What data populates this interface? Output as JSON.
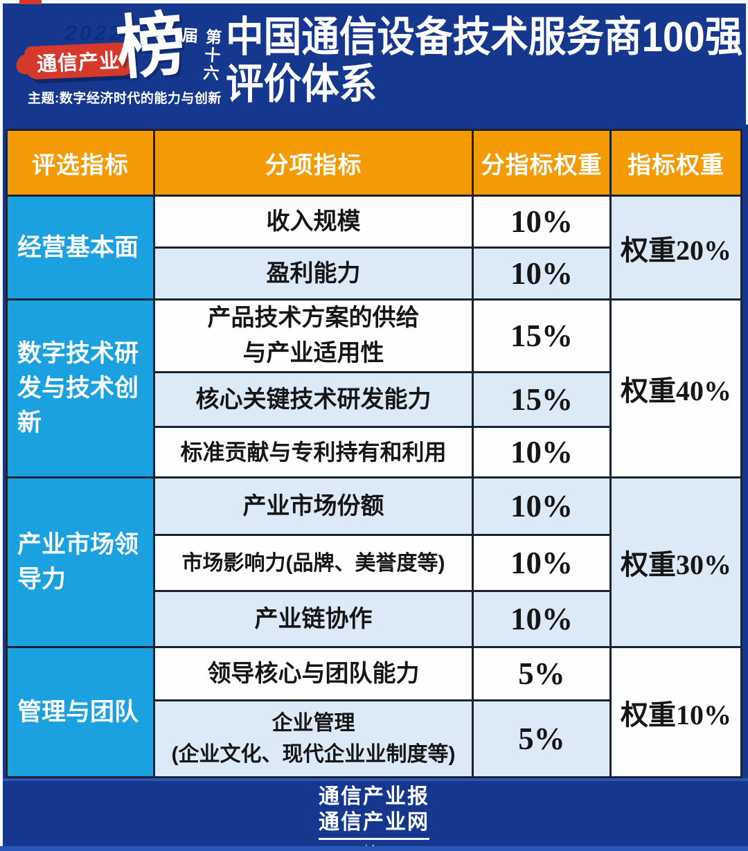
{
  "colors": {
    "background_navy": "#15388E",
    "header_orange": "#F49A05",
    "category_cyan": "#1BA1DF",
    "row_alt_blue": "#DCEAF7",
    "grid_line": "#1A2130",
    "badge_red": "#D6382C",
    "bottom_strip_blue": "#2B55B8",
    "text_dark": "#161616"
  },
  "header": {
    "badge": {
      "year": "2022",
      "brand": "通信产业",
      "bang": "榜",
      "edition": "第十六届",
      "theme": "主题:数字经济时代的能力与创新"
    },
    "title_line1": "中国通信设备技术服务商100强",
    "title_line2": "评价体系"
  },
  "table": {
    "columns": [
      "评选指标",
      "分项指标",
      "分指标权重",
      "指标权重"
    ],
    "groups": [
      {
        "category": "经营基本面",
        "weight": "权重20%",
        "rows": [
          {
            "name": "收入规模",
            "value": "10%"
          },
          {
            "name": "盈利能力",
            "value": "10%"
          }
        ]
      },
      {
        "category": "数字技术研发与技术创新",
        "weight": "权重40%",
        "rows": [
          {
            "name": "产品技术方案的供给\n与产业适用性",
            "value": "15%"
          },
          {
            "name": "核心关键技术研发能力",
            "value": "15%"
          },
          {
            "name": "标准贡献与专利持有和利用",
            "value": "10%"
          }
        ]
      },
      {
        "category": "产业市场领导力",
        "weight": "权重30%",
        "rows": [
          {
            "name": "产业市场份额",
            "value": "10%"
          },
          {
            "name": "市场影响力(品牌、美誉度等)",
            "value": "10%"
          },
          {
            "name": "产业链协作",
            "value": "10%"
          }
        ]
      },
      {
        "category": "管理与团队",
        "weight": "权重10%",
        "rows": [
          {
            "name": "领导核心与团队能力",
            "value": "5%"
          },
          {
            "name": "企业管理\n(企业文化、现代企业业制度等)",
            "value": "5%"
          }
        ]
      }
    ]
  },
  "footer": {
    "line1": "通信产业报",
    "line2": "通信产业网",
    "url": "www.ccidcom.com"
  }
}
